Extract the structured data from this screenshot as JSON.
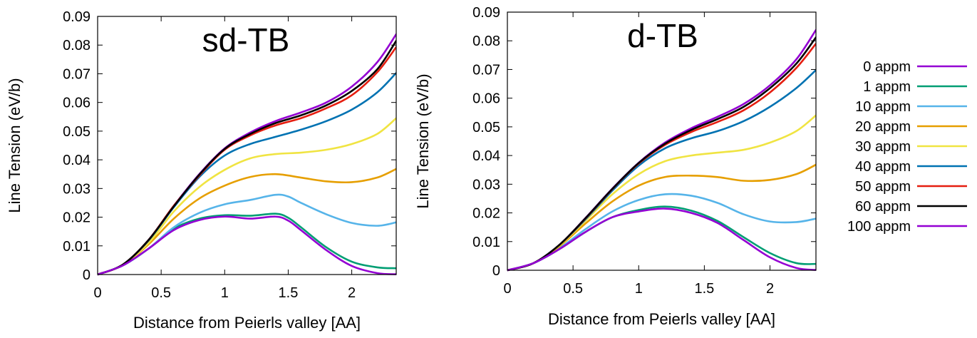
{
  "chart_data": [
    {
      "type": "line",
      "title": "sd-TB",
      "xlabel": "Distance from Peierls valley [AA]",
      "ylabel": "Line Tension (eV/b)",
      "xlim": [
        0,
        2.35
      ],
      "ylim": [
        0,
        0.09
      ],
      "xticks": [
        "0",
        "0.5",
        "1",
        "1.5",
        "2"
      ],
      "yticks": [
        "0",
        "0.01",
        "0.02",
        "0.03",
        "0.04",
        "0.05",
        "0.06",
        "0.07",
        "0.08",
        "0.09"
      ],
      "grid": false,
      "series": [
        {
          "name": "0 appm",
          "color": "#9400d3",
          "x": [
            0,
            0.2,
            0.4,
            0.6,
            0.8,
            1.0,
            1.2,
            1.4,
            1.6,
            1.8,
            2.0,
            2.2,
            2.35
          ],
          "y": [
            0,
            0.0035,
            0.012,
            0.024,
            0.035,
            0.044,
            0.0495,
            0.0535,
            0.0565,
            0.06,
            0.0655,
            0.074,
            0.0838
          ]
        },
        {
          "name": "1 appm",
          "color": "#009e73",
          "x": [
            0,
            0.2,
            0.4,
            0.6,
            0.8,
            1.0,
            1.2,
            1.4,
            1.5,
            1.6,
            1.8,
            2.0,
            2.2,
            2.35
          ],
          "y": [
            0,
            0.0032,
            0.009,
            0.016,
            0.0195,
            0.0207,
            0.0205,
            0.0212,
            0.0198,
            0.0165,
            0.0095,
            0.0045,
            0.0025,
            0.0022
          ]
        },
        {
          "name": "10 appm",
          "color": "#56b4e9",
          "x": [
            0,
            0.2,
            0.4,
            0.6,
            0.8,
            1.0,
            1.2,
            1.4,
            1.5,
            1.6,
            1.8,
            2.0,
            2.2,
            2.35
          ],
          "y": [
            0,
            0.0032,
            0.009,
            0.0165,
            0.0215,
            0.0245,
            0.026,
            0.0278,
            0.0272,
            0.025,
            0.021,
            0.018,
            0.017,
            0.0182
          ]
        },
        {
          "name": "20 appm",
          "color": "#e69f00",
          "x": [
            0,
            0.2,
            0.4,
            0.6,
            0.8,
            1.0,
            1.2,
            1.4,
            1.6,
            1.8,
            2.0,
            2.2,
            2.35
          ],
          "y": [
            0,
            0.0033,
            0.0105,
            0.0195,
            0.0265,
            0.031,
            0.034,
            0.035,
            0.0338,
            0.0325,
            0.0322,
            0.0338,
            0.0368
          ]
        },
        {
          "name": "30 appm",
          "color": "#f0e442",
          "x": [
            0,
            0.2,
            0.4,
            0.6,
            0.8,
            1.0,
            1.2,
            1.4,
            1.6,
            1.8,
            2.0,
            2.2,
            2.35
          ],
          "y": [
            0,
            0.0034,
            0.011,
            0.022,
            0.0305,
            0.0365,
            0.0405,
            0.042,
            0.0425,
            0.0435,
            0.0455,
            0.049,
            0.0545
          ]
        },
        {
          "name": "40 appm",
          "color": "#0072b2",
          "x": [
            0,
            0.2,
            0.4,
            0.6,
            0.8,
            1.0,
            1.2,
            1.4,
            1.6,
            1.8,
            2.0,
            2.2,
            2.35
          ],
          "y": [
            0,
            0.0035,
            0.0118,
            0.0235,
            0.034,
            0.0415,
            0.0455,
            0.048,
            0.0505,
            0.0535,
            0.0575,
            0.0635,
            0.0703
          ]
        },
        {
          "name": "50 appm",
          "color": "#e51e10",
          "x": [
            0,
            0.2,
            0.4,
            0.6,
            0.8,
            1.0,
            1.2,
            1.4,
            1.6,
            1.8,
            2.0,
            2.2,
            2.35
          ],
          "y": [
            0,
            0.0035,
            0.012,
            0.024,
            0.0345,
            0.0435,
            0.0485,
            0.052,
            0.0545,
            0.058,
            0.0625,
            0.0705,
            0.0793
          ]
        },
        {
          "name": "60 appm",
          "color": "#000000",
          "x": [
            0,
            0.2,
            0.4,
            0.6,
            0.8,
            1.0,
            1.2,
            1.4,
            1.6,
            1.8,
            2.0,
            2.2,
            2.35
          ],
          "y": [
            0,
            0.0035,
            0.012,
            0.0238,
            0.0348,
            0.0438,
            0.049,
            0.0528,
            0.0555,
            0.059,
            0.064,
            0.0715,
            0.0815
          ]
        },
        {
          "name": "100 appm",
          "color": "#9400d3",
          "x": [
            0,
            0.2,
            0.4,
            0.6,
            0.8,
            1.0,
            1.2,
            1.4,
            1.5,
            1.6,
            1.8,
            2.0,
            2.2,
            2.35
          ],
          "y": [
            0,
            0.0032,
            0.009,
            0.0155,
            0.019,
            0.0202,
            0.0195,
            0.0202,
            0.0188,
            0.0155,
            0.0085,
            0.003,
            0.0005,
            0.0001
          ]
        }
      ]
    },
    {
      "type": "line",
      "title": "d-TB",
      "xlabel": "Distance from Peierls valley [AA]",
      "ylabel": "Line Tension (eV/b)",
      "xlim": [
        0,
        2.35
      ],
      "ylim": [
        0,
        0.09
      ],
      "xticks": [
        "0",
        "0.5",
        "1",
        "1.5",
        "2"
      ],
      "yticks": [
        "0",
        "0.01",
        "0.02",
        "0.03",
        "0.04",
        "0.05",
        "0.06",
        "0.07",
        "0.08",
        "0.09"
      ],
      "grid": false,
      "series": [
        {
          "name": "0 appm",
          "color": "#9400d3",
          "x": [
            0,
            0.2,
            0.4,
            0.6,
            0.8,
            1.0,
            1.2,
            1.4,
            1.6,
            1.8,
            2.0,
            2.2,
            2.35
          ],
          "y": [
            0,
            0.0025,
            0.009,
            0.0185,
            0.0285,
            0.0375,
            0.0445,
            0.0495,
            0.0535,
            0.058,
            0.0645,
            0.0735,
            0.0838
          ]
        },
        {
          "name": "1 appm",
          "color": "#009e73",
          "x": [
            0,
            0.2,
            0.4,
            0.6,
            0.8,
            1.0,
            1.2,
            1.4,
            1.6,
            1.8,
            2.0,
            2.2,
            2.35
          ],
          "y": [
            0,
            0.0025,
            0.0075,
            0.0135,
            0.0185,
            0.021,
            0.0222,
            0.0208,
            0.0172,
            0.0115,
            0.006,
            0.0025,
            0.0022
          ]
        },
        {
          "name": "10 appm",
          "color": "#56b4e9",
          "x": [
            0,
            0.2,
            0.4,
            0.6,
            0.8,
            1.0,
            1.2,
            1.4,
            1.6,
            1.8,
            2.0,
            2.2,
            2.35
          ],
          "y": [
            0,
            0.0025,
            0.0078,
            0.0145,
            0.0205,
            0.0245,
            0.0265,
            0.026,
            0.0235,
            0.0195,
            0.017,
            0.0168,
            0.018
          ]
        },
        {
          "name": "20 appm",
          "color": "#e69f00",
          "x": [
            0,
            0.2,
            0.4,
            0.6,
            0.8,
            1.0,
            1.2,
            1.4,
            1.6,
            1.8,
            2.0,
            2.2,
            2.35
          ],
          "y": [
            0,
            0.0025,
            0.0085,
            0.0165,
            0.024,
            0.0295,
            0.0325,
            0.033,
            0.0325,
            0.0312,
            0.0315,
            0.0335,
            0.0368
          ]
        },
        {
          "name": "30 appm",
          "color": "#f0e442",
          "x": [
            0,
            0.2,
            0.4,
            0.6,
            0.8,
            1.0,
            1.2,
            1.4,
            1.6,
            1.8,
            2.0,
            2.2,
            2.35
          ],
          "y": [
            0,
            0.0025,
            0.0088,
            0.0175,
            0.0265,
            0.0335,
            0.038,
            0.04,
            0.041,
            0.042,
            0.0445,
            0.0485,
            0.054
          ]
        },
        {
          "name": "40 appm",
          "color": "#0072b2",
          "x": [
            0,
            0.2,
            0.4,
            0.6,
            0.8,
            1.0,
            1.2,
            1.4,
            1.6,
            1.8,
            2.0,
            2.2,
            2.35
          ],
          "y": [
            0,
            0.0025,
            0.009,
            0.018,
            0.0278,
            0.0365,
            0.0425,
            0.046,
            0.0485,
            0.052,
            0.057,
            0.0635,
            0.0698
          ]
        },
        {
          "name": "50 appm",
          "color": "#e51e10",
          "x": [
            0,
            0.2,
            0.4,
            0.6,
            0.8,
            1.0,
            1.2,
            1.4,
            1.6,
            1.8,
            2.0,
            2.2,
            2.35
          ],
          "y": [
            0,
            0.0025,
            0.009,
            0.0183,
            0.0283,
            0.0372,
            0.0437,
            0.0482,
            0.0517,
            0.0558,
            0.062,
            0.0705,
            0.079
          ]
        },
        {
          "name": "60 appm",
          "color": "#000000",
          "x": [
            0,
            0.2,
            0.4,
            0.6,
            0.8,
            1.0,
            1.2,
            1.4,
            1.6,
            1.8,
            2.0,
            2.2,
            2.35
          ],
          "y": [
            0,
            0.0025,
            0.009,
            0.0184,
            0.0284,
            0.0374,
            0.0441,
            0.0489,
            0.0527,
            0.057,
            0.0635,
            0.072,
            0.0812
          ]
        },
        {
          "name": "100 appm",
          "color": "#9400d3",
          "x": [
            0,
            0.2,
            0.4,
            0.6,
            0.8,
            1.0,
            1.2,
            1.4,
            1.6,
            1.8,
            2.0,
            2.2,
            2.35
          ],
          "y": [
            0,
            0.0025,
            0.0075,
            0.0135,
            0.0185,
            0.0205,
            0.0215,
            0.02,
            0.0165,
            0.0105,
            0.0045,
            0.0008,
            0.0001
          ]
        }
      ]
    }
  ]
}
